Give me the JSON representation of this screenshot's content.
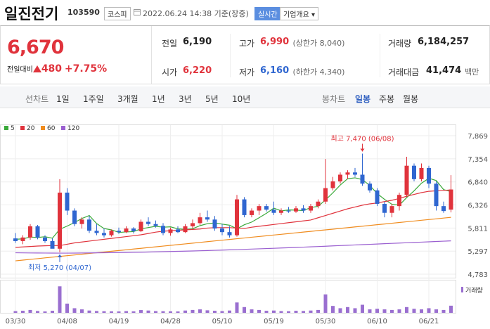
{
  "header": {
    "name": "일진전기",
    "code": "103590",
    "market": "코스피",
    "timestamp": "2022.06.24 14:38 기준(장중)",
    "realtime": "실시간",
    "company_button": "기업개요"
  },
  "price": {
    "current": "6,670",
    "change_label": "전일대비",
    "change": "480",
    "change_rate": "+7.75%"
  },
  "summary": [
    [
      {
        "label": "전일",
        "value": "6,190"
      },
      {
        "label": "고가",
        "value": "6,990",
        "note": "(상한가 8,040)",
        "color": "#e0333c"
      },
      {
        "label": "거래량",
        "value": "6,184,257"
      }
    ],
    [
      {
        "label": "시가",
        "value": "6,220",
        "color": "#e0333c"
      },
      {
        "label": "저가",
        "value": "6,160",
        "note": "(하한가 4,340)",
        "color": "#2f66d0"
      },
      {
        "label": "거래대금",
        "value": "41,474",
        "note": "백만"
      }
    ]
  ],
  "tabs": {
    "line_label": "선차트",
    "line_periods": [
      "1일",
      "1주일",
      "3개월",
      "1년",
      "3년",
      "5년",
      "10년"
    ],
    "candle_label": "봉차트",
    "candle_periods": [
      "일봉",
      "주봉",
      "월봉"
    ],
    "active": "일봉"
  },
  "chart_data": {
    "type": "candlestick",
    "up_color": "#e0333c",
    "down_color": "#2f66d0",
    "categories": [
      "03/30",
      null,
      null,
      null,
      null,
      null,
      null,
      "04/08",
      null,
      null,
      null,
      null,
      null,
      null,
      "04/19",
      null,
      null,
      null,
      null,
      null,
      null,
      "04/28",
      null,
      null,
      null,
      null,
      null,
      null,
      "05/10",
      null,
      null,
      null,
      null,
      null,
      null,
      "05/19",
      null,
      null,
      null,
      null,
      null,
      null,
      "05/30",
      null,
      null,
      null,
      null,
      null,
      null,
      "06/10",
      null,
      null,
      null,
      null,
      null,
      null,
      "06/21",
      null,
      null,
      null
    ],
    "open": [
      5580,
      5520,
      5600,
      5850,
      5600,
      5520,
      5350,
      6600,
      6200,
      5900,
      6000,
      5750,
      5700,
      5650,
      5750,
      5720,
      5800,
      5740,
      5950,
      5900,
      5860,
      5700,
      5780,
      5720,
      5850,
      5920,
      6050,
      6000,
      5800,
      5720,
      5650,
      6450,
      6100,
      6200,
      6300,
      6220,
      6150,
      6200,
      6180,
      6250,
      6200,
      6300,
      6400,
      6700,
      6850,
      7000,
      7050,
      7000,
      6800,
      6650,
      6350,
      6150,
      6300,
      6550,
      7200,
      6900,
      7150,
      6800,
      6300,
      6220
    ],
    "high": [
      5700,
      5650,
      5900,
      5880,
      5650,
      5580,
      6900,
      6700,
      6250,
      6050,
      6080,
      5900,
      5800,
      5780,
      5820,
      5850,
      5830,
      6000,
      6050,
      5980,
      5920,
      5820,
      5850,
      5900,
      6000,
      6150,
      6200,
      6080,
      5900,
      5850,
      6550,
      6500,
      6250,
      6350,
      6350,
      6400,
      6250,
      6280,
      6300,
      6320,
      6350,
      6450,
      7350,
      6950,
      7050,
      7100,
      7150,
      7470,
      6850,
      6700,
      6400,
      6350,
      6600,
      7400,
      7250,
      7250,
      7200,
      6850,
      6400,
      6990
    ],
    "low": [
      5480,
      5450,
      5550,
      5560,
      5480,
      5380,
      5270,
      6100,
      5850,
      5800,
      5700,
      5650,
      5600,
      5620,
      5680,
      5700,
      5690,
      5720,
      5850,
      5820,
      5650,
      5640,
      5700,
      5700,
      5800,
      5880,
      5950,
      5750,
      5650,
      5600,
      5620,
      6050,
      6050,
      6100,
      6180,
      6100,
      6100,
      6150,
      6150,
      6150,
      6150,
      6250,
      6350,
      6650,
      6800,
      6900,
      6950,
      6750,
      6600,
      6300,
      6050,
      6050,
      6200,
      6500,
      6850,
      6850,
      6700,
      6200,
      6150,
      6160
    ],
    "close": [
      5520,
      5600,
      5850,
      5600,
      5520,
      5350,
      6600,
      6200,
      5900,
      6000,
      5750,
      5700,
      5650,
      5750,
      5720,
      5800,
      5740,
      5950,
      5900,
      5860,
      5700,
      5780,
      5720,
      5850,
      5920,
      6050,
      6000,
      5800,
      5720,
      5650,
      6450,
      6100,
      6200,
      6300,
      6220,
      6150,
      6200,
      6180,
      6250,
      6200,
      6300,
      6400,
      6700,
      6850,
      7000,
      7050,
      7000,
      6800,
      6650,
      6350,
      6150,
      6300,
      6550,
      7200,
      6900,
      7150,
      6800,
      6300,
      6190,
      6670
    ],
    "ma": [
      {
        "name": "5",
        "color": "#3aa93a",
        "values": [
          5560,
          5570,
          5610,
          5600,
          5618,
          5584,
          5784,
          5854,
          5934,
          6024,
          6090,
          5910,
          5800,
          5770,
          5714,
          5724,
          5732,
          5792,
          5822,
          5850,
          5830,
          5838,
          5792,
          5782,
          5794,
          5864,
          5908,
          5924,
          5898,
          5874,
          5794,
          5884,
          5944,
          6040,
          6140,
          6254,
          6194,
          6214,
          6210,
          6200,
          6266,
          6296,
          6436,
          6596,
          6770,
          6910,
          6930,
          6890,
          6760,
          6580,
          6450,
          6340,
          6320,
          6490,
          6640,
          6810,
          6920,
          6870,
          6668,
          6622
        ]
      },
      {
        "name": "20",
        "color": "#e0333c",
        "values": [
          5380,
          5390,
          5400,
          5410,
          5415,
          5420,
          5420,
          5450,
          5480,
          5500,
          5520,
          5540,
          5560,
          5580,
          5600,
          5620,
          5640,
          5660,
          5690,
          5720,
          5740,
          5750,
          5760,
          5770,
          5780,
          5790,
          5810,
          5820,
          5820,
          5820,
          5810,
          5800,
          5830,
          5850,
          5870,
          5890,
          5910,
          5930,
          5950,
          5970,
          5990,
          6040,
          6090,
          6140,
          6190,
          6240,
          6280,
          6320,
          6350,
          6370,
          6400,
          6430,
          6470,
          6520,
          6560,
          6600,
          6630,
          6640,
          6650,
          6660
        ]
      },
      {
        "name": "60",
        "color": "#f08c1e",
        "values": [
          5080,
          5096,
          5113,
          5129,
          5146,
          5162,
          5179,
          5195,
          5211,
          5228,
          5244,
          5261,
          5277,
          5294,
          5310,
          5326,
          5343,
          5359,
          5376,
          5392,
          5409,
          5425,
          5441,
          5458,
          5474,
          5491,
          5507,
          5524,
          5540,
          5556,
          5573,
          5589,
          5606,
          5622,
          5639,
          5655,
          5671,
          5688,
          5704,
          5721,
          5737,
          5754,
          5770,
          5786,
          5803,
          5819,
          5836,
          5852,
          5869,
          5885,
          5901,
          5918,
          5934,
          5951,
          5967,
          5984,
          6000,
          6016,
          6033,
          6050
        ]
      },
      {
        "name": "120",
        "color": "#9a5fd0",
        "values": [
          5260,
          5258,
          5256,
          5255,
          5254,
          5253,
          5252,
          5252,
          5253,
          5255,
          5257,
          5259,
          5261,
          5263,
          5265,
          5267,
          5270,
          5273,
          5276,
          5280,
          5284,
          5288,
          5292,
          5296,
          5300,
          5305,
          5310,
          5315,
          5320,
          5325,
          5330,
          5336,
          5342,
          5348,
          5354,
          5360,
          5366,
          5372,
          5378,
          5385,
          5392,
          5399,
          5406,
          5413,
          5420,
          5427,
          5434,
          5441,
          5448,
          5455,
          5462,
          5469,
          5476,
          5483,
          5490,
          5497,
          5504,
          5511,
          5518,
          5525
        ]
      }
    ],
    "volume": {
      "name": "거래량",
      "color": "#9a6fd0",
      "ylim": [
        0,
        25000000
      ],
      "values": [
        1500000,
        1800000,
        2500000,
        1600000,
        1200000,
        1800000,
        23000000,
        8000000,
        4000000,
        3000000,
        2000000,
        1600000,
        1400000,
        1300000,
        1200000,
        1500000,
        1300000,
        2400000,
        2000000,
        1500000,
        1400000,
        1300000,
        1200000,
        2000000,
        2500000,
        3000000,
        2200000,
        1800000,
        1500000,
        2000000,
        9000000,
        5000000,
        3000000,
        2500000,
        1800000,
        2000000,
        1500000,
        1400000,
        1800000,
        1600000,
        2000000,
        2500000,
        16000000,
        6000000,
        4000000,
        5000000,
        4000000,
        7000000,
        3000000,
        3500000,
        3000000,
        2500000,
        3000000,
        5000000,
        3500000,
        3000000,
        4000000,
        3000000,
        2500000,
        6184257
      ]
    },
    "ylim": [
      4783,
      7869
    ],
    "yticks": [
      {
        "value": 7869,
        "label": "7,869"
      },
      {
        "value": 7354,
        "label": "7,354"
      },
      {
        "value": 6840,
        "label": "6,840"
      },
      {
        "value": 6326,
        "label": "6,326"
      },
      {
        "value": 5811,
        "label": "5,811"
      },
      {
        "value": 5297,
        "label": "5,297"
      },
      {
        "value": 4783,
        "label": "4,783"
      }
    ],
    "grid": true,
    "annotations": [
      {
        "label": "최고 7,470 (06/08)",
        "value": 7470,
        "at": "high"
      },
      {
        "label": "최저 5,270 (04/07)",
        "value": 5270,
        "at": "low"
      }
    ]
  }
}
